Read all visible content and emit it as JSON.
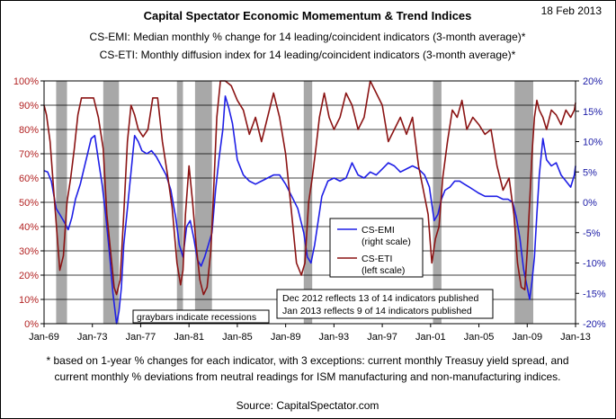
{
  "title": "Capital Spectator Economic Momementum & Trend Indices",
  "date": "18 Feb 2013",
  "subtitle_1": "CS-EMI: Median monthly % change for 14 leading/coincident indicators (3-month average)*",
  "subtitle_2": "CS-ETI: Monthly diffusion index for 14 leading/coincident indicators (3-month average)*",
  "recession_note": "graybars indicate recessions",
  "publication_note_1": "Dec 2012 reflects 13 of 14 indicators published",
  "publication_note_2": "Jan 2013 reflects 9 of 14 indicators published",
  "footnote_1": "* based on 1-year % changes for each indicator, with 3 exceptions: current monthly Treasuy yield spread, and",
  "footnote_2": "current monthly % deviations from neutral readings for ISM manufacturing and non-manufacturing indices.",
  "source": "Source:  CapitalSpectator.com",
  "colors": {
    "emi": "#1f1fe6",
    "eti": "#8b1414",
    "recession": "#a8a8a8",
    "left_axis": "#b22222",
    "right_axis": "#1a1aa6"
  },
  "chart_data": {
    "type": "line",
    "x_ticks": [
      "Jan-69",
      "Jan-73",
      "Jan-77",
      "Jan-81",
      "Jan-85",
      "Jan-89",
      "Jan-93",
      "Jan-97",
      "Jan-01",
      "Jan-05",
      "Jan-09",
      "Jan-13"
    ],
    "x_range": [
      1969.0,
      2013.0
    ],
    "left_axis": {
      "ticks": [
        "0%",
        "10%",
        "20%",
        "30%",
        "40%",
        "50%",
        "60%",
        "70%",
        "80%",
        "90%",
        "100%"
      ],
      "range": [
        0,
        100
      ]
    },
    "right_axis": {
      "ticks": [
        "-20%",
        "-15%",
        "-10%",
        "-5%",
        "0%",
        "5%",
        "10%",
        "15%",
        "20%"
      ],
      "range": [
        -20,
        20
      ]
    },
    "recessions": [
      [
        1970.0,
        1970.9
      ],
      [
        1973.9,
        1975.2
      ],
      [
        1980.0,
        1980.5
      ],
      [
        1981.5,
        1982.9
      ],
      [
        1990.5,
        1991.2
      ],
      [
        2001.2,
        2001.9
      ],
      [
        2007.95,
        2009.5
      ]
    ],
    "legend": {
      "placement": "center",
      "entries": [
        {
          "line1": "CS-EMI",
          "line2": "(right scale)"
        },
        {
          "line1": "CS-ETI",
          "line2": "(left scale)"
        }
      ]
    },
    "series": [
      {
        "name": "CS-EMI",
        "axis": "right",
        "x": [
          1969.0,
          1969.3,
          1969.6,
          1970.0,
          1970.3,
          1970.6,
          1971.0,
          1971.3,
          1971.6,
          1972.0,
          1972.3,
          1972.6,
          1972.9,
          1973.2,
          1973.5,
          1973.8,
          1974.1,
          1974.4,
          1974.7,
          1975.0,
          1975.2,
          1975.4,
          1975.6,
          1975.9,
          1976.2,
          1976.5,
          1976.8,
          1977.1,
          1977.5,
          1977.9,
          1978.3,
          1978.7,
          1979.1,
          1979.5,
          1979.9,
          1980.2,
          1980.5,
          1980.8,
          1981.1,
          1981.4,
          1981.7,
          1982.0,
          1982.3,
          1982.6,
          1982.9,
          1983.2,
          1983.5,
          1983.8,
          1984.0,
          1984.3,
          1984.6,
          1985.0,
          1985.5,
          1986.0,
          1986.5,
          1987.0,
          1987.5,
          1988.0,
          1988.5,
          1989.0,
          1989.5,
          1990.0,
          1990.5,
          1990.8,
          1991.1,
          1991.4,
          1991.7,
          1992.0,
          1992.5,
          1993.0,
          1993.5,
          1994.0,
          1994.5,
          1995.0,
          1995.5,
          1996.0,
          1996.5,
          1997.0,
          1997.5,
          1998.0,
          1998.5,
          1999.0,
          1999.5,
          2000.0,
          2000.5,
          2000.9,
          2001.3,
          2001.6,
          2001.9,
          2002.2,
          2002.6,
          2003.0,
          2003.4,
          2003.8,
          2004.2,
          2004.6,
          2005.0,
          2005.5,
          2006.0,
          2006.5,
          2007.0,
          2007.4,
          2007.8,
          2008.1,
          2008.4,
          2008.7,
          2009.0,
          2009.2,
          2009.4,
          2009.6,
          2009.8,
          2010.0,
          2010.3,
          2010.6,
          2011.0,
          2011.4,
          2011.8,
          2012.2,
          2012.6,
          2012.9,
          2013.0
        ],
        "values": [
          5.2,
          5.0,
          3.5,
          -1.0,
          -2.0,
          -3.0,
          -4.5,
          -2.5,
          0.5,
          3.0,
          5.5,
          8.0,
          10.5,
          11.0,
          7.0,
          3.0,
          -2.0,
          -8.0,
          -15.0,
          -20.0,
          -18.0,
          -14.0,
          -7.0,
          -1.0,
          5.0,
          11.0,
          10.0,
          8.5,
          8.0,
          8.5,
          7.5,
          6.0,
          4.5,
          2.0,
          -2.5,
          -7.0,
          -9.0,
          -4.0,
          -3.0,
          -6.0,
          -9.5,
          -10.5,
          -9.0,
          -7.0,
          -5.0,
          2.0,
          7.5,
          12.0,
          17.5,
          15.5,
          13.0,
          7.0,
          4.5,
          3.5,
          3.0,
          3.5,
          4.0,
          4.5,
          4.5,
          3.0,
          1.0,
          -1.0,
          -5.0,
          -9.0,
          -10.0,
          -7.0,
          -3.0,
          1.0,
          3.5,
          4.0,
          3.5,
          4.0,
          6.5,
          4.5,
          4.0,
          5.0,
          4.5,
          5.5,
          6.5,
          6.0,
          5.0,
          5.5,
          6.0,
          5.5,
          4.5,
          2.5,
          -3.0,
          -2.0,
          0.5,
          2.0,
          2.5,
          3.5,
          3.5,
          3.0,
          2.5,
          2.0,
          1.5,
          1.0,
          1.0,
          1.0,
          0.5,
          0.5,
          0.0,
          -2.5,
          -6.0,
          -11.0,
          -14.0,
          -16.0,
          -13.0,
          -9.0,
          -2.0,
          4.5,
          10.5,
          7.0,
          6.0,
          6.5,
          4.5,
          3.5,
          2.5,
          4.5,
          6.0
        ]
      },
      {
        "name": "CS-ETI",
        "axis": "left",
        "x": [
          1969.0,
          1969.2,
          1969.5,
          1969.8,
          1970.1,
          1970.3,
          1970.6,
          1970.9,
          1971.2,
          1971.5,
          1971.8,
          1972.1,
          1972.4,
          1972.8,
          1973.1,
          1973.5,
          1973.9,
          1974.2,
          1974.5,
          1974.8,
          1975.0,
          1975.3,
          1975.6,
          1975.9,
          1976.2,
          1976.5,
          1976.8,
          1977.2,
          1977.6,
          1978.0,
          1978.4,
          1978.8,
          1979.2,
          1979.6,
          1980.0,
          1980.3,
          1980.5,
          1980.7,
          1981.0,
          1981.3,
          1981.6,
          1981.9,
          1982.2,
          1982.5,
          1982.8,
          1983.0,
          1983.3,
          1983.6,
          1984.0,
          1984.5,
          1985.0,
          1985.5,
          1986.0,
          1986.5,
          1987.0,
          1987.5,
          1988.0,
          1988.5,
          1989.0,
          1989.5,
          1989.9,
          1990.3,
          1990.6,
          1990.9,
          1991.2,
          1991.5,
          1991.8,
          1992.2,
          1992.6,
          1993.0,
          1993.5,
          1994.0,
          1994.5,
          1995.0,
          1995.5,
          1996.0,
          1996.5,
          1997.0,
          1997.5,
          1998.0,
          1998.5,
          1999.0,
          1999.5,
          2000.0,
          2000.4,
          2000.8,
          2001.1,
          2001.4,
          2001.7,
          2002.0,
          2002.4,
          2002.8,
          2003.2,
          2003.6,
          2004.0,
          2004.5,
          2005.0,
          2005.5,
          2006.0,
          2006.5,
          2007.0,
          2007.5,
          2007.9,
          2008.2,
          2008.5,
          2008.8,
          2009.0,
          2009.2,
          2009.4,
          2009.6,
          2009.8,
          2010.0,
          2010.3,
          2010.6,
          2011.0,
          2011.4,
          2011.8,
          2012.2,
          2012.6,
          2012.9,
          2013.0
        ],
        "values": [
          90,
          86,
          75,
          55,
          35,
          22,
          28,
          50,
          60,
          72,
          86,
          93,
          93,
          93,
          93,
          85,
          72,
          45,
          30,
          15,
          12,
          18,
          45,
          75,
          90,
          86,
          80,
          77,
          80,
          93,
          93,
          75,
          62,
          48,
          25,
          16,
          22,
          45,
          65,
          50,
          32,
          18,
          12,
          15,
          30,
          50,
          85,
          100,
          100,
          98,
          92,
          88,
          78,
          85,
          75,
          85,
          95,
          85,
          70,
          45,
          25,
          20,
          25,
          50,
          60,
          72,
          85,
          95,
          85,
          80,
          85,
          95,
          90,
          80,
          85,
          100,
          95,
          90,
          75,
          80,
          85,
          78,
          85,
          65,
          55,
          45,
          25,
          35,
          40,
          60,
          75,
          88,
          85,
          92,
          80,
          85,
          82,
          78,
          80,
          65,
          55,
          60,
          45,
          25,
          15,
          14,
          30,
          50,
          70,
          85,
          92,
          88,
          85,
          80,
          88,
          86,
          82,
          88,
          85,
          88,
          91
        ]
      }
    ]
  }
}
